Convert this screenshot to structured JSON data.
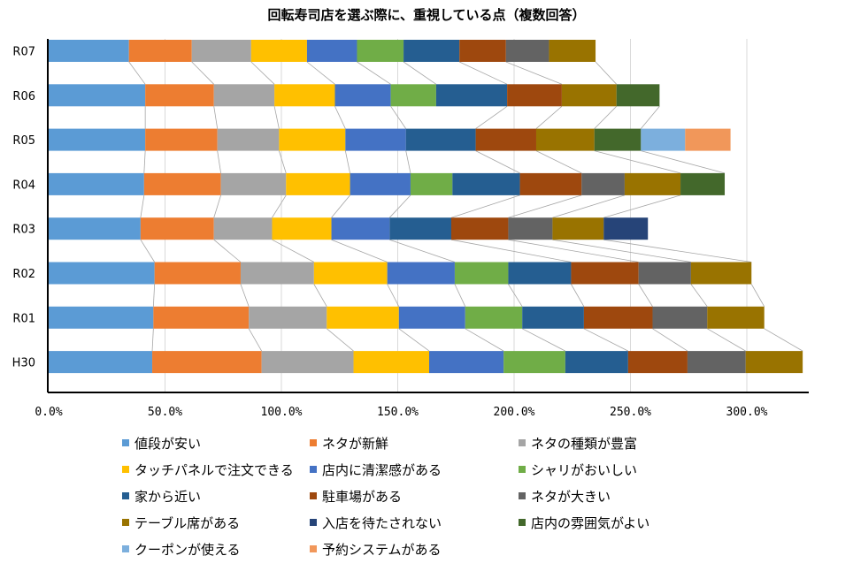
{
  "chart_data": {
    "type": "bar",
    "orientation": "horizontal",
    "stacked": true,
    "title": "回転寿司店を選ぶ際に、重視している点（複数回答）",
    "categories": [
      "R07",
      "R06",
      "R05",
      "R04",
      "R03",
      "R02",
      "R01",
      "H30"
    ],
    "xlim": [
      0,
      330
    ],
    "xticks": [
      "0.0%",
      "50.0%",
      "100.0%",
      "150.0%",
      "200.0%",
      "250.0%",
      "300.0%"
    ],
    "xtick_values": [
      0,
      50,
      100,
      150,
      200,
      250,
      300
    ],
    "grid": "vertical",
    "legend_position": "bottom",
    "series_lines": true,
    "series": [
      {
        "name": "値段が安い",
        "color": "#5B9BD5",
        "values": [
          34.5,
          41.5,
          41.5,
          41,
          39.5,
          45.5,
          45,
          44.5
        ]
      },
      {
        "name": "ネタが新鮮",
        "color": "#ED7D31",
        "values": [
          27,
          29.5,
          31,
          33,
          31.5,
          37,
          41,
          47
        ]
      },
      {
        "name": "ネタの種類が豊富",
        "color": "#A5A5A5",
        "values": [
          25.5,
          26,
          26.5,
          28,
          25,
          31.5,
          33.5,
          39.5
        ]
      },
      {
        "name": "タッチパネルで注文できる",
        "color": "#FFC000",
        "values": [
          24,
          26,
          28.5,
          27.5,
          25.5,
          31.5,
          31,
          32.5
        ]
      },
      {
        "name": "店内に清潔感がある",
        "color": "#4472C4",
        "values": [
          21.5,
          24,
          26,
          26,
          25,
          29,
          28.5,
          32
        ]
      },
      {
        "name": "シャリがおいしい",
        "color": "#70AD47",
        "values": [
          20,
          19.5,
          0,
          18,
          0,
          23,
          24.5,
          26.5
        ]
      },
      {
        "name": "家から近い",
        "color": "#255E91",
        "values": [
          24,
          30.5,
          30,
          29,
          26.5,
          27,
          26.5,
          27
        ]
      },
      {
        "name": "駐車場がある",
        "color": "#9E480E",
        "values": [
          20,
          23.5,
          26,
          26.5,
          24.5,
          29,
          29.5,
          25.5
        ]
      },
      {
        "name": "ネタが大きい",
        "color": "#636363",
        "values": [
          18.5,
          0,
          0,
          18.5,
          19,
          22.5,
          23.5,
          25
        ]
      },
      {
        "name": "テーブル席がある",
        "color": "#997300",
        "values": [
          20,
          23.5,
          25,
          24,
          22,
          26,
          24.5,
          24.5
        ]
      },
      {
        "name": "入店を待たされない",
        "color": "#264478",
        "values": [
          0,
          0,
          0,
          0,
          19,
          0,
          0,
          0
        ]
      },
      {
        "name": "店内の雰囲気がよい",
        "color": "#43682B",
        "values": [
          0,
          18.5,
          20,
          19,
          0,
          0,
          0,
          0
        ]
      },
      {
        "name": "クーポンが使える",
        "color": "#7CAFDD",
        "values": [
          0,
          0,
          19,
          0,
          0,
          0,
          0,
          0
        ]
      },
      {
        "name": "予約システムがある",
        "color": "#F1975A",
        "values": [
          0,
          0,
          19.5,
          0,
          0,
          0,
          0,
          0
        ]
      }
    ]
  }
}
